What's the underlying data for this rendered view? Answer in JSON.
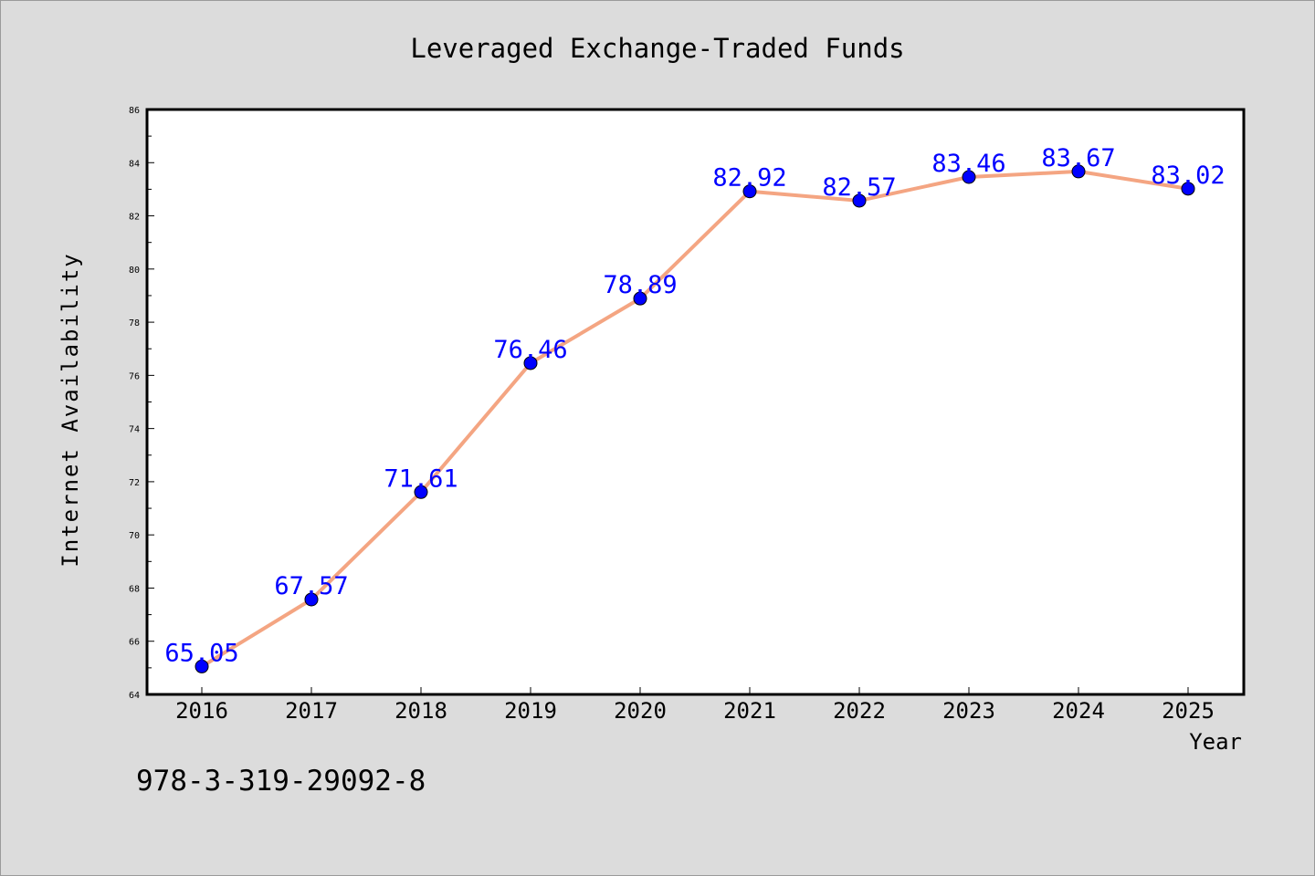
{
  "chart_data": {
    "type": "line",
    "title": "Leveraged Exchange-Traded Funds",
    "xlabel": "Year",
    "ylabel": "Internet Availability",
    "categories": [
      "2016",
      "2017",
      "2018",
      "2019",
      "2020",
      "2021",
      "2022",
      "2023",
      "2024",
      "2025"
    ],
    "series": [
      {
        "values": [
          65.05,
          67.57,
          71.61,
          76.46,
          78.89,
          82.92,
          82.57,
          83.46,
          83.67,
          83.02
        ],
        "labels": [
          "65.05",
          "67.57",
          "71.61",
          "76.46",
          "78.89",
          "82.92",
          "82.57",
          "83.46",
          "83.67",
          "83.02"
        ],
        "line_color": "#f4a582",
        "marker_color": "#0000ff",
        "label_color": "#0000ff"
      }
    ],
    "ylim": [
      64,
      86
    ],
    "yticks": [
      "64",
      "66",
      "68",
      "70",
      "72",
      "74",
      "76",
      "78",
      "80",
      "82",
      "84",
      "86"
    ],
    "grid": false,
    "legend": "none"
  },
  "footnote": "978-3-319-29092-8"
}
